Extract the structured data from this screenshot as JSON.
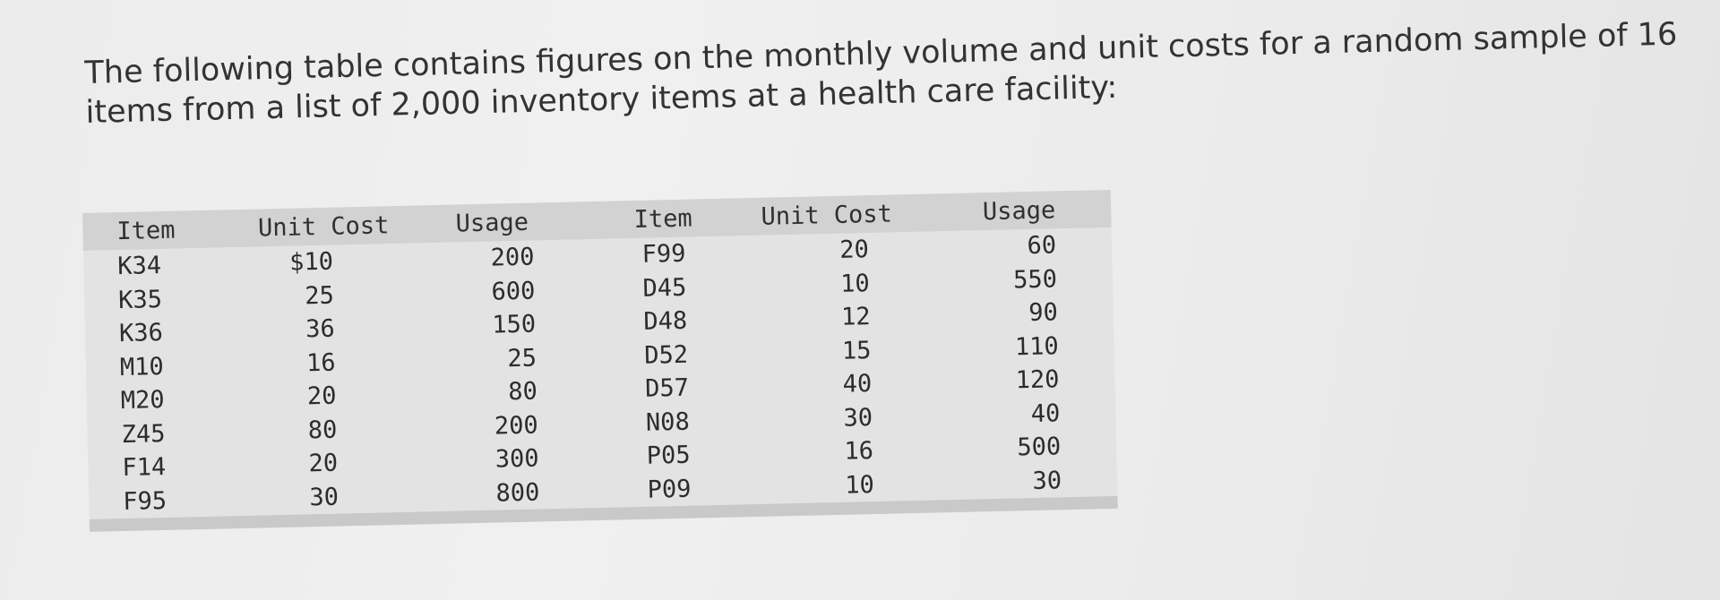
{
  "intro": {
    "line1": "The following table contains figures on the monthly volume and unit costs for a random sample of 16",
    "line2": "items from a list of 2,000 inventory items at a health care facility:"
  },
  "table": {
    "headers": [
      "Item",
      "Unit Cost",
      "Usage",
      "Item",
      "Unit Cost",
      "Usage"
    ],
    "rows": [
      [
        "K34",
        "$10",
        "200",
        "F99",
        "20",
        "60"
      ],
      [
        "K35",
        "25",
        "600",
        "D45",
        "10",
        "550"
      ],
      [
        "K36",
        "36",
        "150",
        "D48",
        "12",
        "90"
      ],
      [
        "M10",
        "16",
        "25",
        "D52",
        "15",
        "110"
      ],
      [
        "M20",
        "20",
        "80",
        "D57",
        "40",
        "120"
      ],
      [
        "Z45",
        "80",
        "200",
        "N08",
        "30",
        "40"
      ],
      [
        "F14",
        "20",
        "300",
        "P05",
        "16",
        "500"
      ],
      [
        "F95",
        "30",
        "800",
        "P09",
        "10",
        "30"
      ]
    ]
  }
}
